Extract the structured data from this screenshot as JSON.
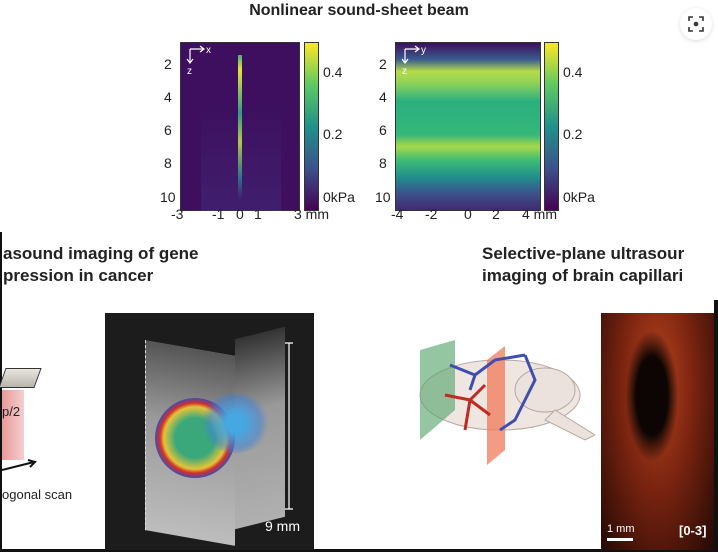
{
  "figure_title": "Nonlinear sound-sheet beam",
  "chart_data": [
    {
      "type": "heatmap",
      "title": "",
      "xlabel": "mm",
      "ylabel": "z",
      "axis_arrows": [
        "x",
        "z"
      ],
      "x_ticks": [
        "-3",
        "-1",
        "0",
        "1",
        "3 mm"
      ],
      "y_ticks": [
        "2",
        "4",
        "6",
        "8",
        "10"
      ],
      "colorbar_ticks": [
        "0.4",
        "0.2",
        "0kPa"
      ],
      "colorbar_range": [
        0,
        0.5
      ]
    },
    {
      "type": "heatmap",
      "title": "",
      "xlabel": "mm",
      "ylabel": "z",
      "axis_arrows": [
        "y",
        "z"
      ],
      "x_ticks": [
        "-4",
        "-2",
        "0",
        "2",
        "4 mm"
      ],
      "y_ticks": [
        "2",
        "4",
        "6",
        "8",
        "10"
      ],
      "colorbar_ticks": [
        "0.4",
        "0.2",
        "0kPa"
      ],
      "colorbar_range": [
        0,
        0.5
      ]
    }
  ],
  "left_section": {
    "title_line1": "asound imaging of gene",
    "title_line2": "pression in cancer",
    "label_p2": "p/2",
    "label_scan": "ogonal scan",
    "scale": "9 mm"
  },
  "right_section": {
    "title_line1": "Selective-plane ultrasour",
    "title_line2": "imaging of brain capillari",
    "scale": "1 mm",
    "range": "[0-3]"
  },
  "colors": {
    "viridis_low": "#440154",
    "viridis_high": "#fde725"
  },
  "icons": {
    "lens": "visual-search-icon"
  }
}
